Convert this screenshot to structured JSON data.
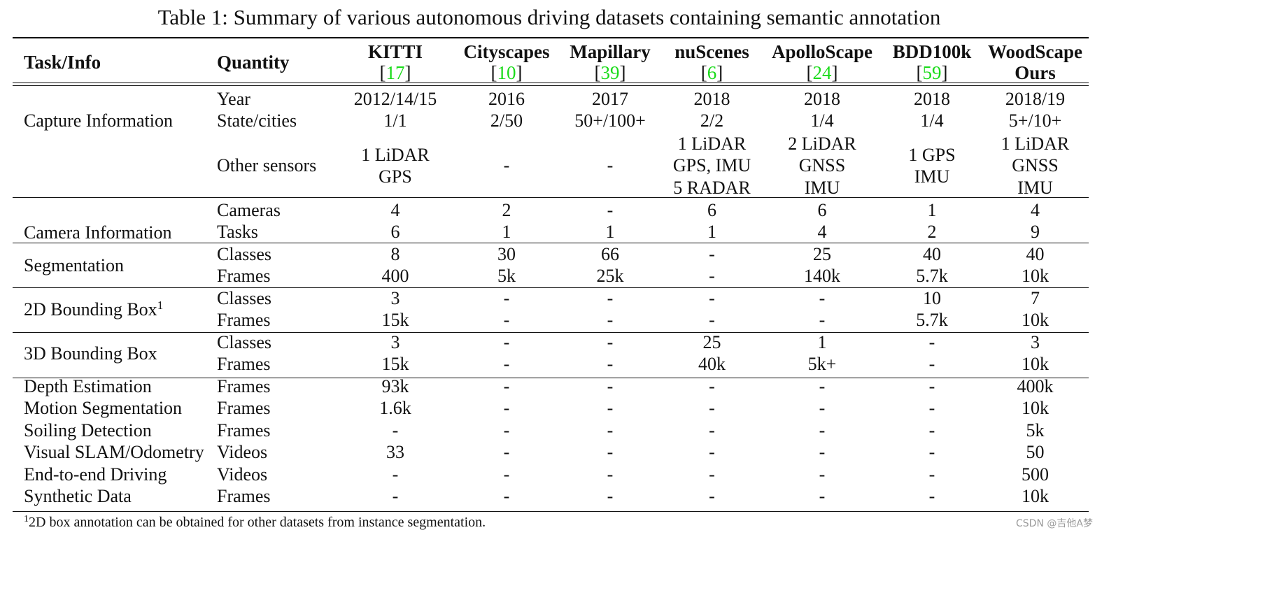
{
  "caption": "Table 1: Summary of various autonomous driving datasets containing semantic annotation",
  "header": {
    "task": "Task/Info",
    "quantity": "Quantity",
    "datasets": [
      {
        "name": "KITTI",
        "cite": "17"
      },
      {
        "name": "Cityscapes",
        "cite": "10"
      },
      {
        "name": "Mapillary",
        "cite": "39"
      },
      {
        "name": "nuScenes",
        "cite": "6"
      },
      {
        "name": "ApolloScape",
        "cite": "24"
      },
      {
        "name": "BDD100k",
        "cite": "59"
      },
      {
        "name": "WoodScape",
        "sub": "Ours"
      }
    ]
  },
  "groups": {
    "capture": {
      "task": "Capture Information",
      "year": {
        "qty": "Year",
        "v": [
          "2012/14/15",
          "2016",
          "2017",
          "2018",
          "2018",
          "2018",
          "2018/19"
        ]
      },
      "state": {
        "qty": "State/cities",
        "v": [
          "1/1",
          "2/50",
          "50+/100+",
          "2/2",
          "1/4",
          "1/4",
          "5+/10+"
        ]
      },
      "sensors": {
        "qty": "Other sensors",
        "v": [
          [
            "1 LiDAR",
            "GPS"
          ],
          [
            "-"
          ],
          [
            "-"
          ],
          [
            "1 LiDAR",
            "GPS, IMU",
            "5 RADAR"
          ],
          [
            "2 LiDAR",
            "GNSS",
            "IMU"
          ],
          [
            "1 GPS",
            "IMU"
          ],
          [
            "1 LiDAR",
            "GNSS",
            "IMU"
          ]
        ]
      }
    },
    "camera": {
      "task": "Camera Information",
      "cameras": {
        "qty": "Cameras",
        "v": [
          "4",
          "2",
          "-",
          "6",
          "6",
          "1",
          "4"
        ]
      },
      "tasks": {
        "qty": "Tasks",
        "v": [
          "6",
          "1",
          "1",
          "1",
          "4",
          "2",
          "9"
        ]
      }
    },
    "segmentation": {
      "task": "Segmentation",
      "classes": {
        "qty": "Classes",
        "v": [
          "8",
          "30",
          "66",
          "-",
          "25",
          "40",
          "40"
        ]
      },
      "frames": {
        "qty": "Frames",
        "v": [
          "400",
          "5k",
          "25k",
          "-",
          "140k",
          "5.7k",
          "10k"
        ]
      }
    },
    "bbox2d": {
      "task": "2D Bounding Box",
      "sup": "1",
      "classes": {
        "qty": "Classes",
        "v": [
          "3",
          "-",
          "-",
          "-",
          "-",
          "10",
          "7"
        ]
      },
      "frames": {
        "qty": "Frames",
        "v": [
          "15k",
          "-",
          "-",
          "-",
          "-",
          "5.7k",
          "10k"
        ]
      }
    },
    "bbox3d": {
      "task": "3D Bounding Box",
      "classes": {
        "qty": "Classes",
        "v": [
          "3",
          "-",
          "-",
          "25",
          "1",
          "-",
          "3"
        ]
      },
      "frames": {
        "qty": "Frames",
        "v": [
          "15k",
          "-",
          "-",
          "40k",
          "5k+",
          "-",
          "10k"
        ]
      }
    },
    "other": [
      {
        "task": "Depth Estimation",
        "qty": "Frames",
        "v": [
          "93k",
          "-",
          "-",
          "-",
          "-",
          "-",
          "400k"
        ]
      },
      {
        "task": "Motion Segmentation",
        "qty": "Frames",
        "v": [
          "1.6k",
          "-",
          "-",
          "-",
          "-",
          "-",
          "10k"
        ]
      },
      {
        "task": "Soiling Detection",
        "qty": "Frames",
        "v": [
          "-",
          "-",
          "-",
          "-",
          "-",
          "-",
          "5k"
        ]
      },
      {
        "task": "Visual SLAM/Odometry",
        "qty": "Videos",
        "v": [
          "33",
          "-",
          "-",
          "-",
          "-",
          "-",
          "50"
        ]
      },
      {
        "task": "End-to-end Driving",
        "qty": "Videos",
        "v": [
          "-",
          "-",
          "-",
          "-",
          "-",
          "-",
          "500"
        ]
      },
      {
        "task": "Synthetic Data",
        "qty": "Frames",
        "v": [
          "-",
          "-",
          "-",
          "-",
          "-",
          "-",
          "10k"
        ]
      }
    ]
  },
  "footnote": {
    "sup": "1",
    "text": "2D box annotation can be obtained for other datasets from instance segmentation."
  },
  "watermark": "CSDN @吉他A梦",
  "colors": {
    "citation": "#1adb1a",
    "rule": "#111111"
  }
}
